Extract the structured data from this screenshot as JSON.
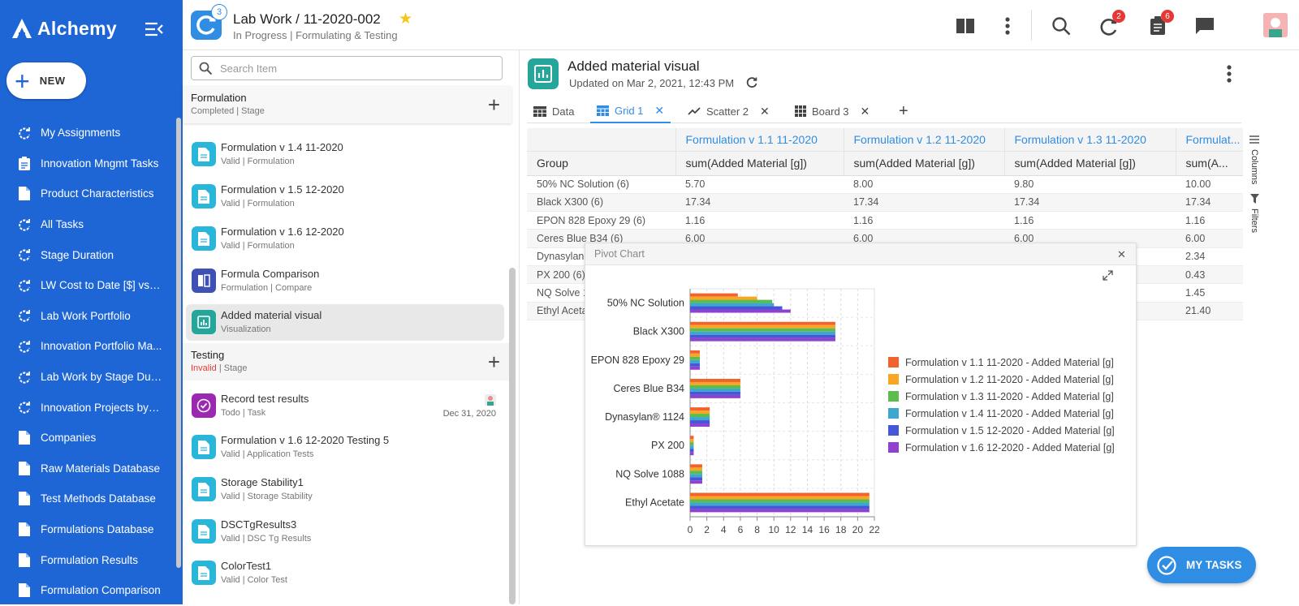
{
  "app": {
    "name": "Alchemy",
    "new_label": "NEW"
  },
  "nav": {
    "items": [
      {
        "label": "My Assignments",
        "icon": "refresh-icon"
      },
      {
        "label": "Innovation Mngmt Tasks",
        "icon": "clipboard-icon"
      },
      {
        "label": "Product Characteristics",
        "icon": "document-icon"
      },
      {
        "label": "All Tasks",
        "icon": "refresh-icon"
      },
      {
        "label": "Stage Duration",
        "icon": "refresh-icon"
      },
      {
        "label": "LW Cost to Date [$] vs E...",
        "icon": "refresh-icon"
      },
      {
        "label": "Lab Work Portfolio",
        "icon": "refresh-icon"
      },
      {
        "label": "Innovation Portfolio Ma...",
        "icon": "refresh-icon"
      },
      {
        "label": "Lab Work by Stage Dura...",
        "icon": "refresh-icon"
      },
      {
        "label": "Innovation Projects by L...",
        "icon": "refresh-icon"
      },
      {
        "label": "Companies",
        "icon": "document-icon"
      },
      {
        "label": "Raw Materials Database",
        "icon": "document-icon"
      },
      {
        "label": "Test Methods Database",
        "icon": "document-icon"
      },
      {
        "label": "Formulations Database",
        "icon": "document-icon"
      },
      {
        "label": "Formulation Results",
        "icon": "document-icon"
      },
      {
        "label": "Formulation Comparison",
        "icon": "document-icon"
      }
    ]
  },
  "header": {
    "record_badge": "3",
    "title": "Lab Work / 11-2020-002",
    "subtitle": "In Progress  |  Formulating & Testing",
    "notifications_badge": "2",
    "tasks_badge": "6"
  },
  "list": {
    "search_placeholder": "Search Item",
    "sections": [
      {
        "title": "Formulation",
        "meta": "Completed  | Stage",
        "status": "Completed",
        "rest": " | Stage"
      },
      {
        "title": "Testing",
        "status": "Invalid",
        "rest": " | Stage"
      }
    ],
    "formulation_items": [
      {
        "name": "Formulation v 1.4 11-2020",
        "meta": "Valid  |  Formulation"
      },
      {
        "name": "Formulation v 1.5 12-2020",
        "meta": "Valid  |  Formulation"
      },
      {
        "name": "Formulation v 1.6 12-2020",
        "meta": "Valid  |  Formulation"
      },
      {
        "name": "Formula Comparison",
        "meta": "Formulation  | Compare"
      },
      {
        "name": "Added material visual",
        "meta": "Visualization"
      }
    ],
    "testing_items": [
      {
        "name": "Record test results",
        "meta": "Todo | Task",
        "date": "Dec 31, 2020"
      },
      {
        "name": "Formulation v 1.6 12-2020 Testing 5",
        "meta": "Valid  |  Application Tests"
      },
      {
        "name": "Storage Stability1",
        "meta": "Valid  |  Storage Stability"
      },
      {
        "name": "DSCTgResults3",
        "meta": "Valid  |  DSC Tg Results"
      },
      {
        "name": "ColorTest1",
        "meta": "Valid  |  Color Test"
      }
    ]
  },
  "main": {
    "title": "Added material visual",
    "updated": "Updated on Mar 2, 2021, 12:43 PM",
    "tabs": [
      {
        "label": "Data",
        "closable": false
      },
      {
        "label": "Grid 1",
        "closable": true,
        "active": true
      },
      {
        "label": "Scatter 2",
        "closable": true
      },
      {
        "label": "Board 3",
        "closable": true
      }
    ],
    "side_tools": {
      "columns": "Columns",
      "filters": "Filters"
    },
    "grid": {
      "group_header": "Group",
      "col_groups": [
        "Formulation v 1.1 11-2020",
        "Formulation v 1.2 11-2020",
        "Formulation v 1.3 11-2020",
        "Formulat..."
      ],
      "measure_headers": [
        "sum(Added Material [g])",
        "sum(Added Material [g])",
        "sum(Added Material [g])",
        "sum(A..."
      ],
      "rows": [
        {
          "group": "50% NC Solution (6)",
          "v": [
            "5.70",
            "8.00",
            "9.80",
            "10.00"
          ]
        },
        {
          "group": "Black X300 (6)",
          "v": [
            "17.34",
            "17.34",
            "17.34",
            "17.34"
          ]
        },
        {
          "group": "EPON 828 Epoxy 29 (6)",
          "v": [
            "1.16",
            "1.16",
            "1.16",
            "1.16"
          ]
        },
        {
          "group": "Ceres Blue B34 (6)",
          "v": [
            "6.00",
            "6.00",
            "6.00",
            "6.00"
          ]
        },
        {
          "group": "Dynasylan",
          "v": [
            "",
            "",
            "",
            "2.34"
          ]
        },
        {
          "group": "PX 200 (6)",
          "v": [
            "",
            "",
            "",
            "0.43"
          ]
        },
        {
          "group": "NQ Solve 1",
          "v": [
            "",
            "",
            "",
            "1.45"
          ]
        },
        {
          "group": "Ethyl Aceta",
          "v": [
            "",
            "",
            "",
            "21.40"
          ]
        }
      ]
    },
    "pivot_title": "Pivot Chart",
    "my_tasks": "MY TASKS"
  },
  "chart_data": {
    "type": "bar",
    "orientation": "horizontal",
    "categories": [
      "50% NC Solution",
      "Black X300",
      "EPON 828 Epoxy 29",
      "Ceres Blue B34",
      "Dynasylan® 1124",
      "PX 200",
      "NQ Solve 1088",
      "Ethyl Acetate"
    ],
    "series": [
      {
        "name": "Formulation v 1.1 11-2020 - Added Material [g]",
        "color": "#f2622e",
        "values": [
          5.7,
          17.34,
          1.16,
          6.0,
          2.34,
          0.43,
          1.45,
          21.4
        ]
      },
      {
        "name": "Formulation v 1.2 11-2020 - Added Material [g]",
        "color": "#f8a623",
        "values": [
          8.0,
          17.34,
          1.16,
          6.0,
          2.34,
          0.43,
          1.45,
          21.4
        ]
      },
      {
        "name": "Formulation v 1.3 11-2020 - Added Material [g]",
        "color": "#5cbc4c",
        "values": [
          9.8,
          17.34,
          1.16,
          6.0,
          2.34,
          0.43,
          1.45,
          21.4
        ]
      },
      {
        "name": "Formulation v 1.4 11-2020 - Added Material [g]",
        "color": "#3ea7cf",
        "values": [
          10.0,
          17.34,
          1.16,
          6.0,
          2.34,
          0.43,
          1.45,
          21.4
        ]
      },
      {
        "name": "Formulation v 1.5 12-2020 - Added Material [g]",
        "color": "#4457d6",
        "values": [
          11.0,
          17.34,
          1.16,
          6.0,
          2.34,
          0.43,
          1.45,
          21.4
        ]
      },
      {
        "name": "Formulation v 1.6 12-2020 - Added Material [g]",
        "color": "#9141cf",
        "values": [
          12.0,
          17.34,
          1.16,
          6.0,
          2.34,
          0.43,
          1.45,
          21.4
        ]
      }
    ],
    "xlim": [
      0,
      22
    ],
    "xticks": [
      0,
      2,
      4,
      6,
      8,
      10,
      12,
      14,
      16,
      18,
      20,
      22
    ],
    "grid": true,
    "legend": "right"
  }
}
